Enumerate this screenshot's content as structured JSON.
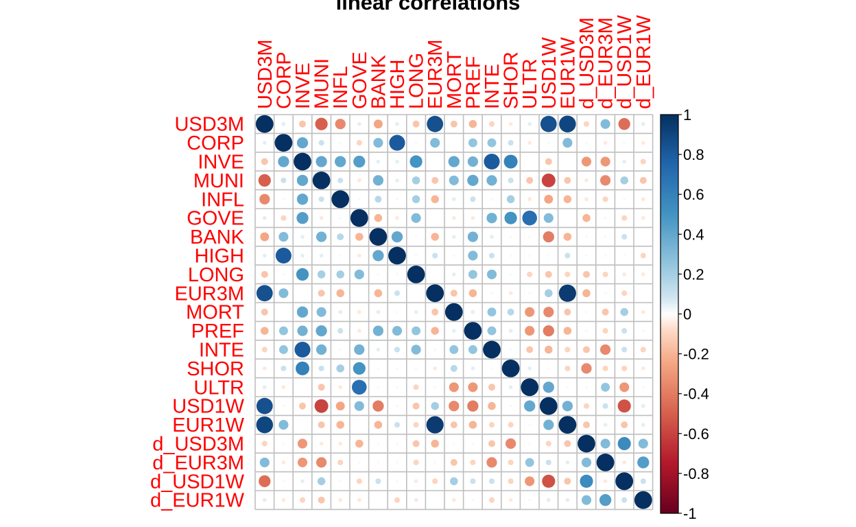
{
  "chart_data": {
    "type": "heatmap",
    "title": "linear correlations",
    "variables": [
      "USD3M",
      "CORP",
      "INVE",
      "MUNI",
      "INFL",
      "GOVE",
      "BANK",
      "HIGH",
      "LONG",
      "EUR3M",
      "MORT",
      "PREF",
      "INTE",
      "SHOR",
      "ULTR",
      "USD1W",
      "EUR1W",
      "d_USD3M",
      "d_EUR3M",
      "d_USD1W",
      "d_EUR1W"
    ],
    "values": [
      [
        1.0,
        0.05,
        -0.15,
        -0.5,
        -0.35,
        0.05,
        -0.25,
        0.05,
        -0.15,
        0.85,
        -0.15,
        -0.2,
        -0.1,
        -0.05,
        0.05,
        0.85,
        0.9,
        -0.1,
        0.3,
        -0.45,
        0.05
      ],
      [
        0.05,
        1.0,
        0.4,
        0.1,
        0.02,
        -0.1,
        0.3,
        0.8,
        0.02,
        0.3,
        0.0,
        0.25,
        0.25,
        0.1,
        -0.05,
        0.02,
        0.3,
        0.02,
        -0.05,
        0.02,
        -0.05
      ],
      [
        -0.15,
        0.4,
        1.0,
        0.4,
        0.4,
        0.45,
        0.05,
        0.05,
        0.5,
        0.0,
        0.4,
        0.35,
        0.8,
        0.6,
        0.0,
        -0.15,
        0.0,
        -0.3,
        -0.3,
        0.05,
        -0.1
      ],
      [
        -0.5,
        0.1,
        0.4,
        1.0,
        0.1,
        -0.05,
        0.35,
        0.05,
        0.2,
        -0.15,
        0.3,
        0.4,
        0.35,
        0.1,
        -0.15,
        -0.6,
        -0.15,
        -0.05,
        -0.35,
        0.2,
        -0.15
      ],
      [
        -0.35,
        0.02,
        0.4,
        0.1,
        1.0,
        0.02,
        0.15,
        0.02,
        0.2,
        -0.2,
        0.05,
        0.1,
        0.02,
        0.2,
        -0.05,
        -0.25,
        -0.2,
        -0.05,
        -0.1,
        0.02,
        -0.05
      ],
      [
        0.05,
        -0.1,
        0.45,
        -0.05,
        0.02,
        1.0,
        -0.2,
        -0.05,
        0.3,
        0.0,
        -0.05,
        -0.05,
        0.35,
        0.5,
        0.7,
        0.3,
        0.0,
        -0.2,
        0.02,
        -0.1,
        -0.05
      ],
      [
        -0.25,
        0.3,
        0.05,
        0.35,
        0.15,
        -0.2,
        1.0,
        0.4,
        0.02,
        -0.2,
        0.05,
        0.35,
        0.05,
        0.02,
        0.02,
        -0.4,
        -0.2,
        0.02,
        0.02,
        0.1,
        0.0
      ],
      [
        0.05,
        0.8,
        0.05,
        0.05,
        0.02,
        -0.05,
        0.4,
        1.0,
        0.02,
        0.1,
        -0.02,
        0.3,
        0.1,
        0.02,
        0.02,
        0.02,
        0.1,
        0.02,
        0.02,
        0.02,
        -0.1
      ],
      [
        -0.15,
        0.02,
        0.5,
        0.2,
        0.2,
        0.3,
        0.02,
        0.02,
        1.0,
        0.0,
        0.05,
        0.25,
        0.3,
        0.02,
        -0.1,
        -0.15,
        -0.1,
        -0.15,
        -0.1,
        -0.05,
        -0.05
      ],
      [
        0.85,
        0.3,
        0.0,
        -0.15,
        -0.2,
        0.0,
        -0.2,
        0.1,
        0.0,
        1.0,
        -0.15,
        -0.2,
        -0.02,
        -0.05,
        -0.02,
        0.2,
        0.95,
        -0.2,
        0.02,
        -0.1,
        0.0
      ],
      [
        -0.15,
        0.0,
        0.4,
        0.3,
        0.05,
        -0.05,
        0.05,
        -0.02,
        0.05,
        -0.15,
        1.0,
        0.05,
        0.25,
        0.15,
        -0.3,
        -0.35,
        -0.15,
        -0.02,
        -0.15,
        0.2,
        -0.05
      ],
      [
        -0.2,
        0.25,
        0.35,
        0.4,
        0.1,
        -0.05,
        0.35,
        0.3,
        0.25,
        -0.2,
        0.05,
        1.0,
        0.25,
        0.05,
        -0.3,
        -0.4,
        -0.2,
        -0.02,
        -0.1,
        0.1,
        -0.02
      ],
      [
        -0.1,
        0.25,
        0.8,
        0.35,
        0.02,
        0.35,
        0.05,
        0.1,
        0.3,
        -0.02,
        0.25,
        0.25,
        1.0,
        0.02,
        -0.15,
        -0.2,
        -0.1,
        -0.15,
        -0.35,
        0.1,
        -0.1
      ],
      [
        -0.05,
        0.1,
        0.6,
        0.1,
        0.2,
        0.5,
        0.02,
        0.02,
        0.02,
        -0.05,
        0.15,
        0.05,
        0.02,
        1.0,
        0.05,
        0.02,
        -0.1,
        -0.35,
        -0.1,
        -0.1,
        -0.05
      ],
      [
        0.05,
        -0.05,
        0.0,
        -0.15,
        -0.05,
        0.7,
        0.02,
        0.02,
        -0.1,
        -0.02,
        -0.3,
        -0.3,
        -0.15,
        0.05,
        1.0,
        0.4,
        0.02,
        0.02,
        0.25,
        -0.3,
        0.02
      ],
      [
        0.85,
        0.02,
        -0.15,
        -0.6,
        -0.25,
        0.3,
        -0.4,
        0.02,
        -0.15,
        0.2,
        -0.35,
        -0.4,
        -0.2,
        0.02,
        0.4,
        1.0,
        0.35,
        -0.1,
        0.1,
        -0.55,
        0.05
      ],
      [
        0.9,
        0.3,
        0.0,
        -0.15,
        -0.2,
        0.0,
        -0.2,
        0.1,
        -0.1,
        0.95,
        -0.15,
        -0.2,
        -0.1,
        -0.1,
        0.02,
        0.35,
        1.0,
        -0.15,
        0.05,
        -0.15,
        0.05
      ],
      [
        -0.1,
        0.02,
        -0.3,
        -0.05,
        -0.05,
        -0.2,
        0.02,
        0.02,
        -0.15,
        -0.2,
        -0.02,
        -0.02,
        -0.15,
        -0.35,
        0.02,
        -0.1,
        -0.15,
        1.0,
        0.3,
        0.55,
        0.3
      ],
      [
        0.3,
        -0.05,
        -0.3,
        -0.35,
        -0.1,
        0.02,
        0.02,
        0.02,
        -0.1,
        0.02,
        -0.15,
        -0.1,
        -0.35,
        -0.1,
        0.25,
        0.1,
        0.05,
        0.3,
        1.0,
        -0.05,
        0.45
      ],
      [
        -0.45,
        0.02,
        0.05,
        0.2,
        0.02,
        -0.1,
        0.1,
        0.02,
        -0.05,
        -0.1,
        0.2,
        0.1,
        0.1,
        -0.1,
        -0.3,
        -0.55,
        -0.15,
        0.55,
        -0.05,
        1.0,
        0.1
      ],
      [
        0.05,
        -0.05,
        -0.1,
        -0.15,
        -0.05,
        -0.05,
        0.0,
        -0.1,
        -0.05,
        0.0,
        -0.05,
        -0.02,
        -0.1,
        -0.05,
        0.02,
        0.05,
        0.05,
        0.3,
        0.45,
        0.1,
        1.0
      ]
    ],
    "colorbar_ticks": [
      1,
      0.8,
      0.6,
      0.4,
      0.2,
      0,
      -0.2,
      -0.4,
      -0.6,
      -0.8,
      -1
    ],
    "color_range": [
      -1,
      1
    ],
    "colors": {
      "negative_end": "#67001F",
      "zero": "#FFFFFF",
      "positive_end": "#053061",
      "label": "#FF0000",
      "grid": "#BEBEBE"
    },
    "grid": true,
    "legend": "right"
  }
}
